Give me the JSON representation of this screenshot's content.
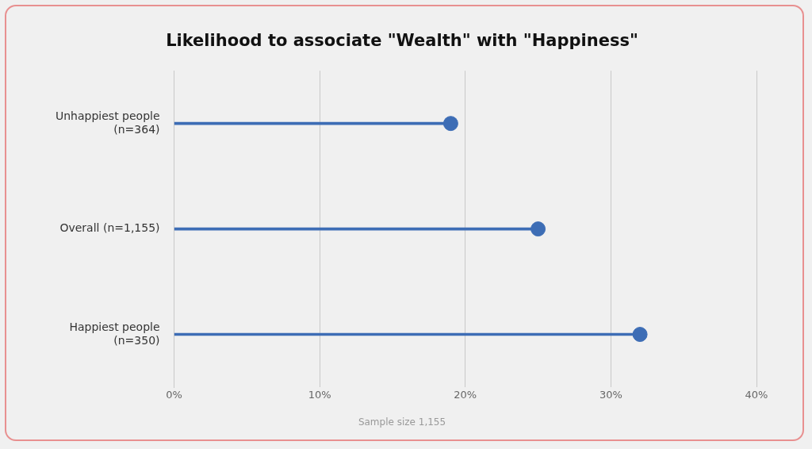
{
  "chart_data": {
    "type": "lollipop",
    "orientation": "horizontal",
    "title": "Likelihood to associate \"Wealth\" with \"Happiness\"",
    "annotations": [
      "Sample size 1,155"
    ],
    "categories": [
      "Happiest people\n(n=350)",
      "Overall (n=1,155)",
      "Unhappiest people\n(n=364)"
    ],
    "values": [
      32,
      25,
      19
    ],
    "color": "#3d6db5",
    "xlim": [
      0,
      40
    ],
    "xticks": [
      {
        "value": 0,
        "label": "0%"
      },
      {
        "value": 10,
        "label": "10%"
      },
      {
        "value": 20,
        "label": "20%"
      },
      {
        "value": 30,
        "label": "30%"
      },
      {
        "value": 40,
        "label": "40%"
      }
    ],
    "grid": "x"
  }
}
